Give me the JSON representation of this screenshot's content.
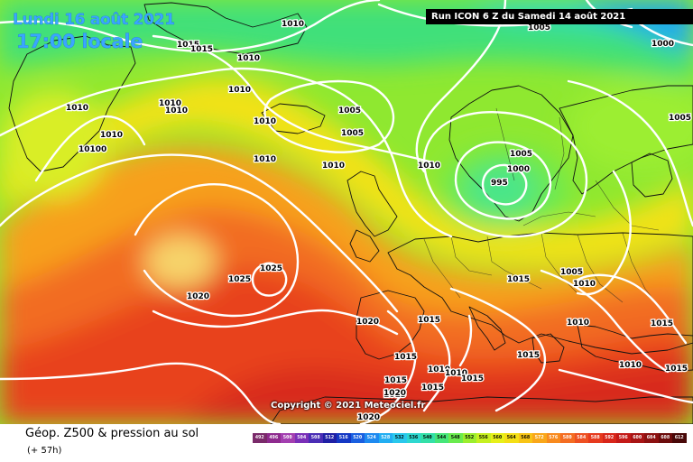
{
  "title": {
    "date": "Lundi 16 août 2021",
    "time": "17:00 locale"
  },
  "run_banner": "Run ICON 6 Z du Samedi 14 août 2021",
  "copyright": "Copyright © 2021 Meteociel.fr",
  "footer": {
    "parameter": "Géop. Z500 & pression au sol",
    "lead_time": "(+ 57h)"
  },
  "scale": {
    "values": [
      "492",
      "496",
      "500",
      "504",
      "508",
      "512",
      "516",
      "520",
      "524",
      "528",
      "532",
      "536",
      "540",
      "544",
      "548",
      "552",
      "556",
      "560",
      "564",
      "568",
      "572",
      "576",
      "580",
      "584",
      "588",
      "592",
      "596",
      "600",
      "604",
      "608",
      "612"
    ],
    "colors": [
      "#7a2a6a",
      "#8e2a8e",
      "#a33fb0",
      "#7a2fb8",
      "#4a2db5",
      "#1f1fa5",
      "#1438c4",
      "#1a5fe0",
      "#1e8af0",
      "#22aef2",
      "#2ac8ec",
      "#2ed8d0",
      "#34e0a8",
      "#46e67a",
      "#6aeb4e",
      "#9cee2e",
      "#c6f020",
      "#e7f01a",
      "#f4df16",
      "#f8c416",
      "#f9a71a",
      "#f88a1e",
      "#f46d22",
      "#ee5022",
      "#e63a1e",
      "#d8261a",
      "#c41a18",
      "#a81414",
      "#8c1010",
      "#6c0c0c",
      "#480808"
    ]
  },
  "isobar_labels": [
    "1010",
    "1015",
    "1015",
    "1010",
    "1010",
    "1010",
    "1010",
    "10100",
    "1010",
    "1010",
    "1010",
    "1005",
    "1005",
    "1010",
    "1005",
    "1005",
    "1010",
    "1000",
    "995",
    "1010",
    "1025",
    "1025",
    "1020",
    "1020",
    "1015",
    "1015",
    "1005",
    "1010",
    "1015",
    "1015",
    "1010",
    "1010",
    "1015",
    "1010",
    "1010",
    "1015",
    "1015",
    "1015",
    "1015",
    "1020",
    "1015",
    "1020",
    "1000",
    "1005"
  ],
  "legend_colors": {
    "coast": "#111111",
    "isobar": "#ffffff"
  }
}
